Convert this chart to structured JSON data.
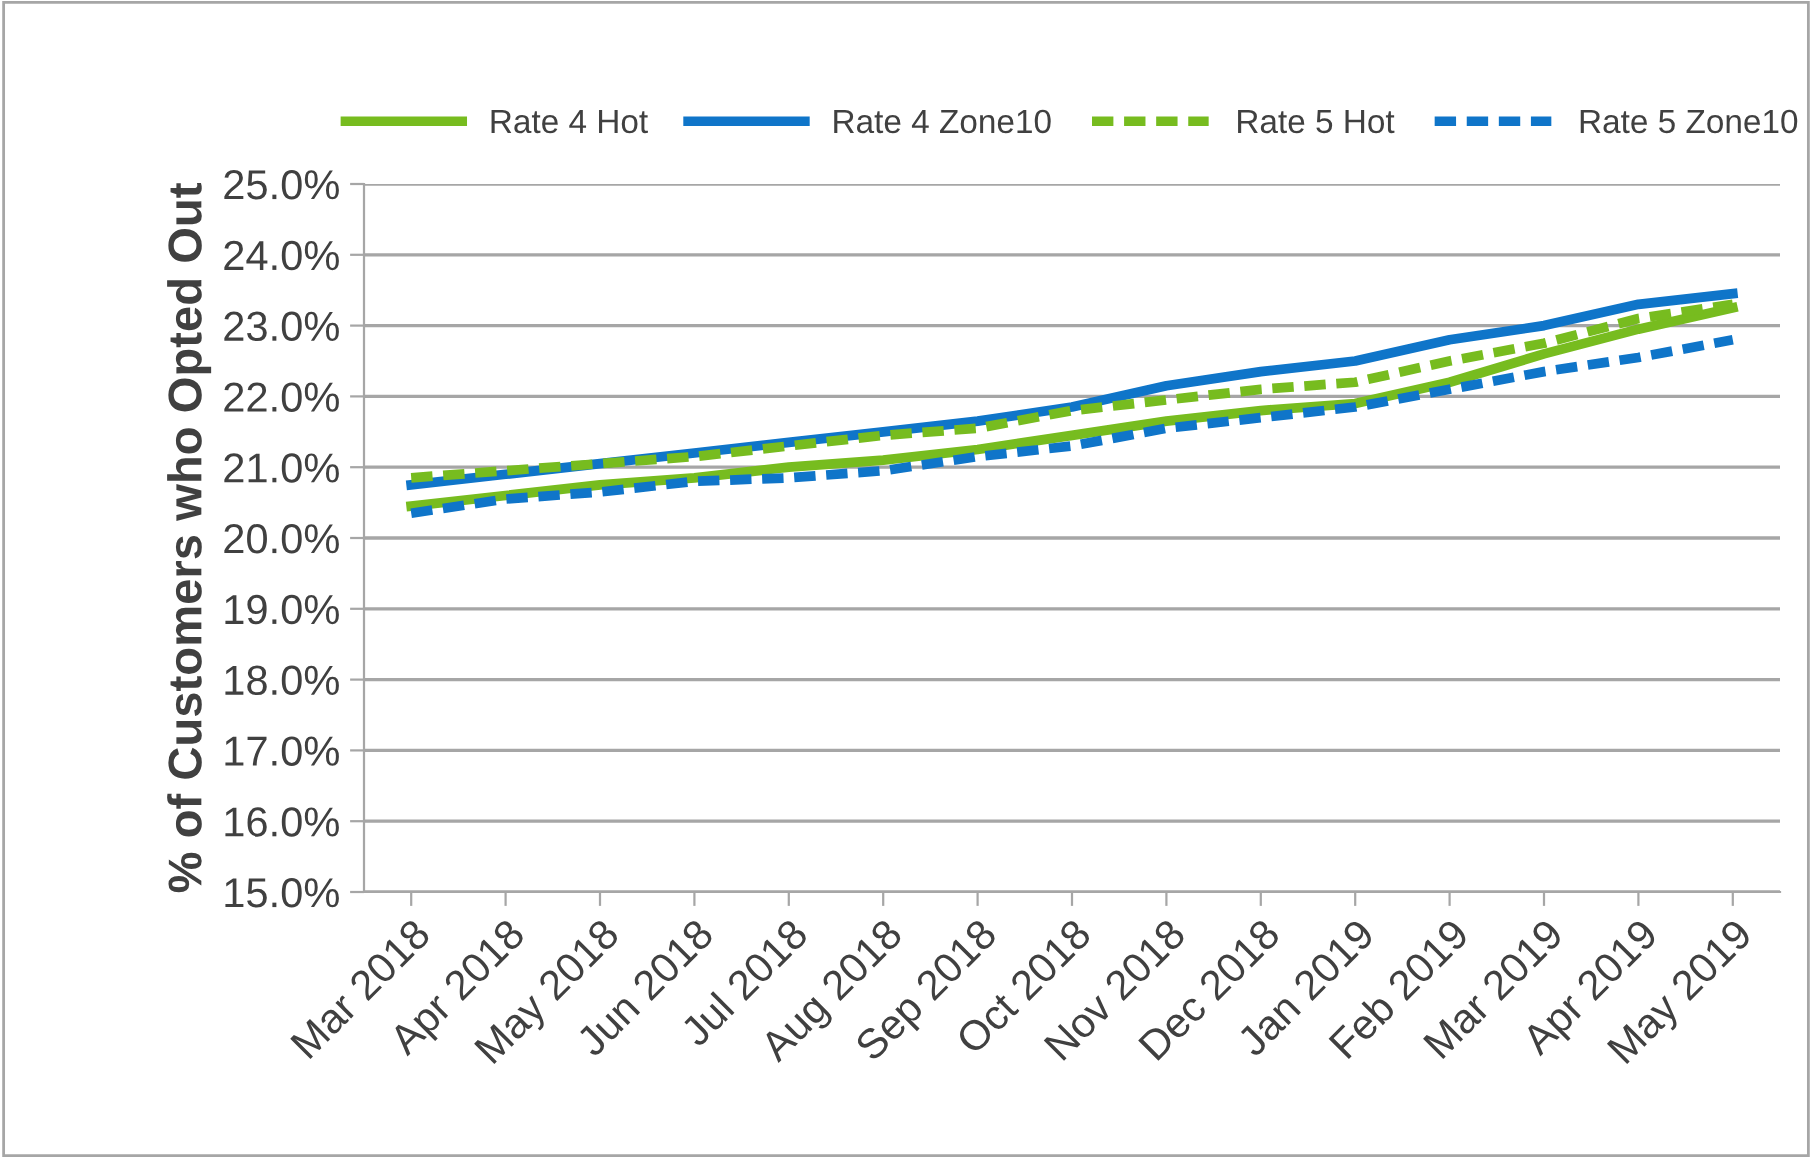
{
  "chart_data": {
    "type": "line",
    "ylabel": "% of Customers who Opted Out",
    "categories": [
      "Mar 2018",
      "Apr 2018",
      "May 2018",
      "Jun 2018",
      "Jul 2018",
      "Aug 2018",
      "Sep 2018",
      "Oct 2018",
      "Nov 2018",
      "Dec 2018",
      "Jan 2019",
      "Feb 2019",
      "Mar 2019",
      "Apr 2019",
      "May 2019"
    ],
    "series": [
      {
        "name": "Rate 4 Hot",
        "color": "#77bc1f",
        "line_style": "solid",
        "values": [
          20.45,
          20.6,
          20.75,
          20.85,
          21.0,
          21.1,
          21.25,
          21.45,
          21.65,
          21.8,
          21.9,
          22.2,
          22.6,
          22.95,
          23.25
        ]
      },
      {
        "name": "Rate 4 Zone10",
        "color": "#0f75c9",
        "line_style": "solid",
        "values": [
          20.75,
          20.9,
          21.05,
          21.2,
          21.35,
          21.5,
          21.65,
          21.85,
          22.15,
          22.35,
          22.5,
          22.8,
          23.0,
          23.3,
          23.45
        ]
      },
      {
        "name": "Rate 5 Hot",
        "color": "#77bc1f",
        "line_style": "dashed",
        "values": [
          20.85,
          20.95,
          21.05,
          21.15,
          21.3,
          21.45,
          21.55,
          21.8,
          21.95,
          22.1,
          22.2,
          22.5,
          22.75,
          23.1,
          23.3
        ]
      },
      {
        "name": "Rate 5 Zone10",
        "color": "#0f75c9",
        "line_style": "dashed",
        "values": [
          20.35,
          20.55,
          20.65,
          20.8,
          20.85,
          20.95,
          21.15,
          21.3,
          21.55,
          21.7,
          21.85,
          22.1,
          22.35,
          22.55,
          22.8
        ]
      }
    ],
    "ylim": [
      15,
      25
    ],
    "yticks": [
      {
        "value": 15,
        "label": "15.0%"
      },
      {
        "value": 16,
        "label": "16.0%"
      },
      {
        "value": 17,
        "label": "17.0%"
      },
      {
        "value": 18,
        "label": "18.0%"
      },
      {
        "value": 19,
        "label": "19.0%"
      },
      {
        "value": 20,
        "label": "20.0%"
      },
      {
        "value": 21,
        "label": "21.0%"
      },
      {
        "value": 22,
        "label": "22.0%"
      },
      {
        "value": 23,
        "label": "23.0%"
      },
      {
        "value": 24,
        "label": "24.0%"
      },
      {
        "value": 25,
        "label": "25.0%"
      }
    ],
    "grid": "y",
    "legend": "top",
    "marker": "none"
  }
}
